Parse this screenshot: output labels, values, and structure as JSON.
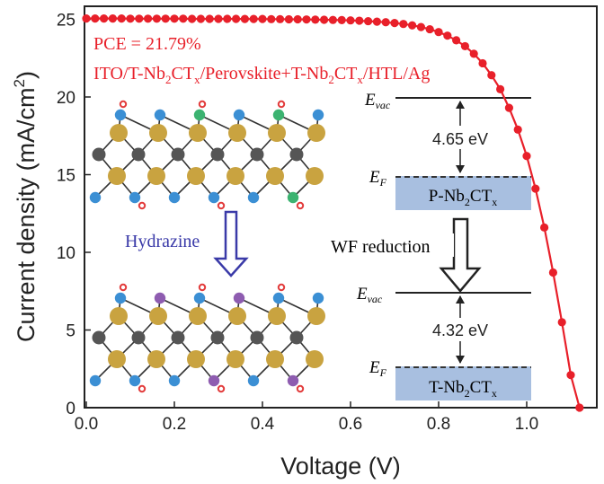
{
  "chart_data": {
    "type": "line",
    "title": "",
    "xlabel": "Voltage (V)",
    "ylabel_main": "Current density (mA/cm",
    "ylabel_sup": "2",
    "ylabel_end": ")",
    "xlim": [
      0.0,
      1.15
    ],
    "ylim": [
      0,
      26
    ],
    "x_ticks": [
      0.0,
      0.2,
      0.4,
      0.6,
      0.8,
      1.0
    ],
    "x_tick_labels": [
      "0.0",
      "0.2",
      "0.4",
      "0.6",
      "0.8",
      "1.0"
    ],
    "y_ticks": [
      0,
      5,
      10,
      15,
      20,
      25
    ],
    "y_tick_labels": [
      "0",
      "5",
      "10",
      "15",
      "20",
      "25"
    ],
    "series": [
      {
        "name": "J-V curve",
        "color": "#e8202a",
        "x": [
          0.0,
          0.02,
          0.04,
          0.06,
          0.08,
          0.1,
          0.12,
          0.14,
          0.16,
          0.18,
          0.2,
          0.22,
          0.24,
          0.26,
          0.28,
          0.3,
          0.32,
          0.34,
          0.36,
          0.38,
          0.4,
          0.42,
          0.44,
          0.46,
          0.48,
          0.5,
          0.52,
          0.54,
          0.56,
          0.58,
          0.6,
          0.62,
          0.64,
          0.66,
          0.68,
          0.7,
          0.72,
          0.74,
          0.76,
          0.78,
          0.8,
          0.82,
          0.84,
          0.86,
          0.88,
          0.9,
          0.92,
          0.94,
          0.96,
          0.98,
          1.0,
          1.02,
          1.04,
          1.06,
          1.08,
          1.1,
          1.12
        ],
        "y": [
          25.05,
          25.05,
          25.05,
          25.05,
          25.05,
          25.04,
          25.04,
          25.04,
          25.04,
          25.04,
          25.04,
          25.04,
          25.03,
          25.03,
          25.03,
          25.03,
          25.03,
          25.03,
          25.02,
          25.02,
          25.02,
          25.01,
          25.01,
          25.0,
          25.0,
          24.99,
          24.98,
          24.97,
          24.96,
          24.95,
          24.93,
          24.91,
          24.88,
          24.85,
          24.81,
          24.76,
          24.7,
          24.61,
          24.5,
          24.36,
          24.18,
          23.95,
          23.65,
          23.27,
          22.78,
          22.17,
          21.4,
          20.5,
          19.3,
          17.9,
          16.2,
          14.1,
          11.6,
          8.7,
          5.5,
          2.1,
          0.0
        ]
      }
    ],
    "annotations": {
      "pce": "PCE = 21.79%",
      "device_parts": [
        "ITO/T-Nb",
        "2",
        "CT",
        "x",
        "/Perovskite+T-Nb",
        "2",
        "CT",
        "x",
        "/HTL/Ag"
      ]
    }
  },
  "inset": {
    "arrow_label": "Hydrazine",
    "wf_reduction": "WF reduction",
    "top": {
      "evac_base": "E",
      "evac_sub": "vac",
      "gap": "4.65 eV",
      "ef_base": "E",
      "ef_sub": "F",
      "material": [
        "P-Nb",
        "2",
        "CT",
        "x"
      ]
    },
    "bottom": {
      "evac_base": "E",
      "evac_sub": "vac",
      "gap": "4.32 eV",
      "ef_base": "E",
      "ef_sub": "F",
      "material": [
        "T-Nb",
        "2",
        "CT",
        "x"
      ]
    }
  },
  "colors": {
    "curve": "#e8202a",
    "arrow_blue": "#3a3aa8",
    "nb_gold": "#c9a340",
    "carbon_grey": "#555555",
    "oxygen_blue": "#3b8fd4",
    "cl_green": "#3cb371",
    "n_purple": "#8e5cb0",
    "h_red": "#e23b3b",
    "band_fill": "#a8bfe0"
  }
}
